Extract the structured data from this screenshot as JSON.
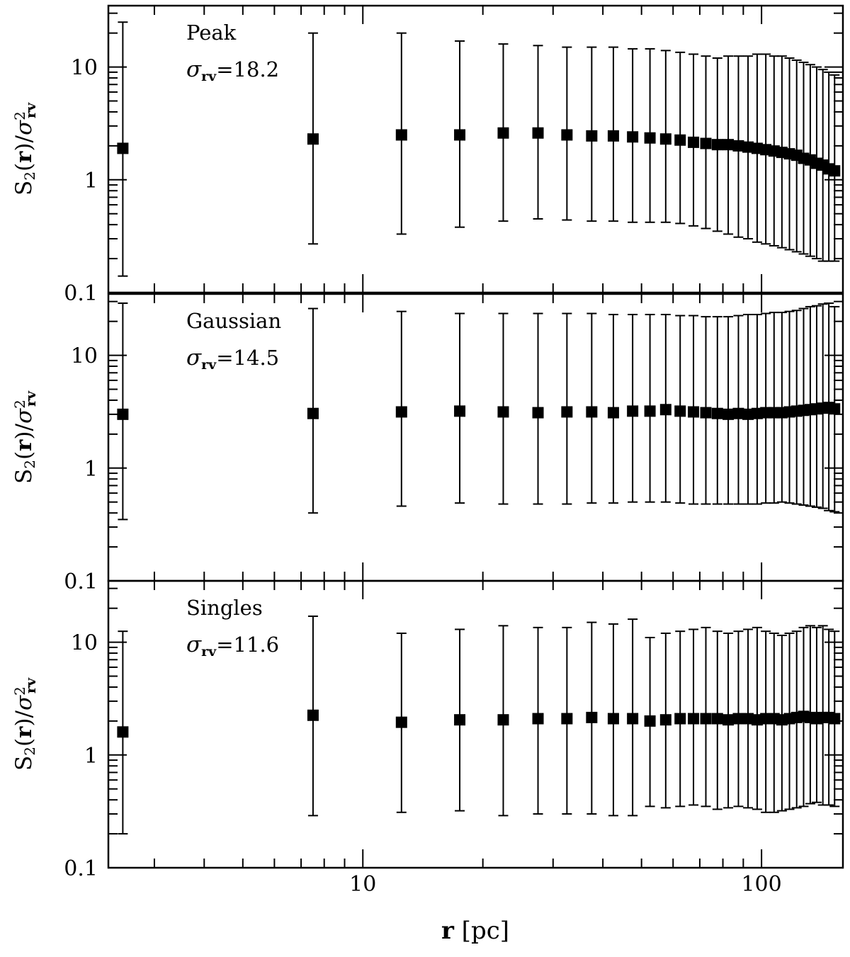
{
  "chart_data": {
    "type": "scatter",
    "x_scale": "log",
    "y_scale": "log",
    "xlim": [
      2.3,
      160
    ],
    "ylim": [
      0.1,
      35
    ],
    "xlabel": "r [pc]",
    "x_ticks": [
      "10",
      "100"
    ],
    "y_ticks": [
      "0.1",
      "1",
      "10"
    ],
    "error_bars": true,
    "legend": "none",
    "x": [
      2.5,
      7.5,
      12.5,
      17.5,
      22.5,
      27.5,
      32.5,
      37.5,
      42.5,
      47.5,
      52.5,
      57.5,
      62.5,
      67.5,
      72.5,
      77.5,
      82.5,
      87.5,
      92.5,
      97.5,
      102.5,
      107.5,
      112.5,
      117.5,
      122.5,
      127.5,
      132.5,
      137.5,
      142.5,
      147.5,
      152.5
    ],
    "panels": [
      {
        "label": "Peak",
        "sigma_value": "18.2",
        "ylabel": "S2(r)/σ²rv",
        "y": [
          1.9,
          2.3,
          2.5,
          2.5,
          2.6,
          2.6,
          2.5,
          2.45,
          2.45,
          2.4,
          2.35,
          2.3,
          2.25,
          2.15,
          2.1,
          2.05,
          2.05,
          2.0,
          1.95,
          1.9,
          1.85,
          1.8,
          1.75,
          1.7,
          1.65,
          1.55,
          1.5,
          1.4,
          1.35,
          1.25,
          1.2
        ],
        "y_err_low": [
          0.14,
          0.27,
          0.33,
          0.38,
          0.43,
          0.45,
          0.44,
          0.43,
          0.43,
          0.42,
          0.42,
          0.42,
          0.41,
          0.39,
          0.37,
          0.35,
          0.33,
          0.31,
          0.3,
          0.28,
          0.27,
          0.26,
          0.25,
          0.24,
          0.23,
          0.22,
          0.21,
          0.2,
          0.19,
          0.19,
          0.19
        ],
        "y_err_high": [
          25,
          20,
          20,
          17,
          16,
          15.5,
          15,
          15,
          15,
          14.5,
          14.5,
          14,
          13.5,
          13,
          12.5,
          12,
          12.5,
          12.5,
          12.5,
          13,
          13,
          12.5,
          12.5,
          12,
          11.5,
          11,
          10.5,
          10,
          9.5,
          9,
          8.5
        ]
      },
      {
        "label": "Gaussian",
        "sigma_value": "14.5",
        "ylabel": "S2(r)/σ²rv",
        "y": [
          3.0,
          3.05,
          3.15,
          3.2,
          3.15,
          3.1,
          3.15,
          3.15,
          3.1,
          3.2,
          3.2,
          3.3,
          3.2,
          3.15,
          3.1,
          3.05,
          3.0,
          3.05,
          3.0,
          3.05,
          3.1,
          3.1,
          3.1,
          3.15,
          3.2,
          3.25,
          3.3,
          3.35,
          3.4,
          3.45,
          3.35
        ],
        "y_err_low": [
          0.35,
          0.4,
          0.46,
          0.49,
          0.48,
          0.48,
          0.48,
          0.49,
          0.49,
          0.5,
          0.5,
          0.5,
          0.49,
          0.48,
          0.48,
          0.48,
          0.48,
          0.48,
          0.48,
          0.48,
          0.49,
          0.49,
          0.5,
          0.49,
          0.48,
          0.47,
          0.46,
          0.45,
          0.44,
          0.42,
          0.41
        ],
        "y_err_high": [
          29,
          26,
          24.5,
          23.5,
          23.5,
          23.5,
          23.5,
          23.5,
          23,
          23,
          23,
          23,
          22.5,
          22.5,
          22,
          22,
          22,
          22.5,
          23,
          23,
          23.5,
          24,
          24,
          24.5,
          25,
          26,
          27,
          27.5,
          28.5,
          29,
          27
        ]
      },
      {
        "label": "Singles",
        "sigma_value": "11.6",
        "ylabel": "S2(r)/σ²rv",
        "y": [
          1.6,
          2.25,
          1.95,
          2.05,
          2.05,
          2.1,
          2.1,
          2.15,
          2.1,
          2.1,
          2.0,
          2.05,
          2.1,
          2.1,
          2.1,
          2.1,
          2.05,
          2.1,
          2.1,
          2.05,
          2.1,
          2.1,
          2.05,
          2.1,
          2.15,
          2.2,
          2.15,
          2.1,
          2.15,
          2.15,
          2.1
        ],
        "y_err_low": [
          0.2,
          0.29,
          0.31,
          0.32,
          0.29,
          0.3,
          0.3,
          0.3,
          0.29,
          0.29,
          0.35,
          0.34,
          0.35,
          0.36,
          0.35,
          0.33,
          0.34,
          0.35,
          0.34,
          0.33,
          0.31,
          0.31,
          0.32,
          0.33,
          0.34,
          0.35,
          0.37,
          0.38,
          0.36,
          0.36,
          0.35
        ],
        "y_err_high": [
          12.5,
          17,
          12,
          13,
          14,
          13.5,
          13.5,
          15,
          14.5,
          16,
          11,
          12,
          12.5,
          13,
          13.5,
          12.5,
          12,
          12.5,
          13,
          13.5,
          12.5,
          12,
          11.5,
          12,
          12.5,
          13.5,
          14,
          13.5,
          14,
          13,
          12.5
        ]
      }
    ]
  }
}
